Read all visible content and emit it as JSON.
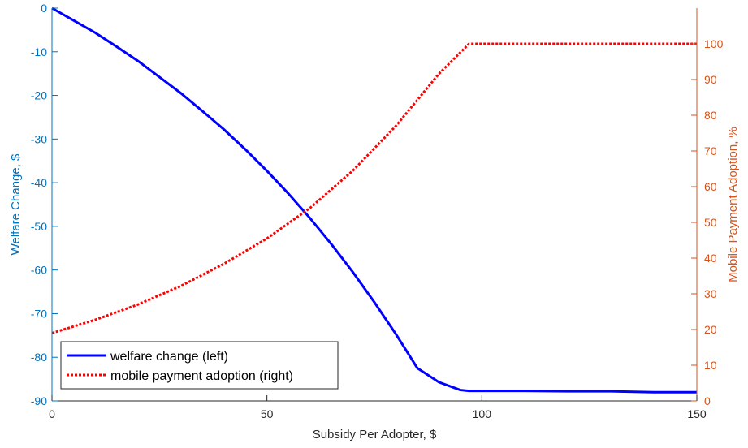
{
  "chart_data": {
    "type": "line",
    "title": "",
    "xlabel": "Subsidy Per Adopter, $",
    "ylabel_left": "Welfare Change, $",
    "ylabel_right": "Mobile Payment Adoption, %",
    "xlim": [
      0,
      150
    ],
    "ylim_left": [
      -90,
      0
    ],
    "ylim_right": [
      0,
      110
    ],
    "xticks": [
      0,
      50,
      100,
      150
    ],
    "yticks_left": [
      0,
      -10,
      -20,
      -30,
      -40,
      -50,
      -60,
      -70,
      -80,
      -90
    ],
    "yticks_right": [
      0,
      10,
      20,
      30,
      40,
      50,
      60,
      70,
      80,
      90,
      100
    ],
    "grid": false,
    "legend_position": "bottom-left",
    "colors": {
      "left_axis": "#0072BD",
      "right_axis": "#D95319",
      "welfare_line": "#0000FF",
      "adoption_line": "#FF0000"
    },
    "series": [
      {
        "name": "welfare change (left)",
        "axis": "left",
        "style": "solid",
        "x": [
          0,
          5,
          10,
          15,
          20,
          25,
          30,
          35,
          40,
          45,
          50,
          55,
          60,
          65,
          70,
          75,
          80,
          85,
          90,
          95,
          97,
          100,
          110,
          120,
          130,
          140,
          150
        ],
        "y": [
          0,
          -2.8,
          -5.6,
          -8.8,
          -12.1,
          -15.8,
          -19.5,
          -23.6,
          -27.8,
          -32.4,
          -37.3,
          -42.5,
          -48.1,
          -54.1,
          -60.5,
          -67.4,
          -74.7,
          -82.5,
          -85.7,
          -87.5,
          -87.7,
          -87.7,
          -87.7,
          -87.8,
          -87.8,
          -88.0,
          -88.0
        ]
      },
      {
        "name": "mobile payment adoption (right)",
        "axis": "right",
        "style": "dotted",
        "x": [
          0,
          10,
          20,
          30,
          40,
          50,
          60,
          70,
          80,
          90,
          97,
          100,
          110,
          120,
          130,
          140,
          150
        ],
        "y": [
          19,
          22.7,
          27,
          32.2,
          38.4,
          45.5,
          54,
          64.5,
          77,
          91.6,
          100,
          100,
          100,
          100,
          100,
          100,
          100
        ]
      }
    ]
  }
}
